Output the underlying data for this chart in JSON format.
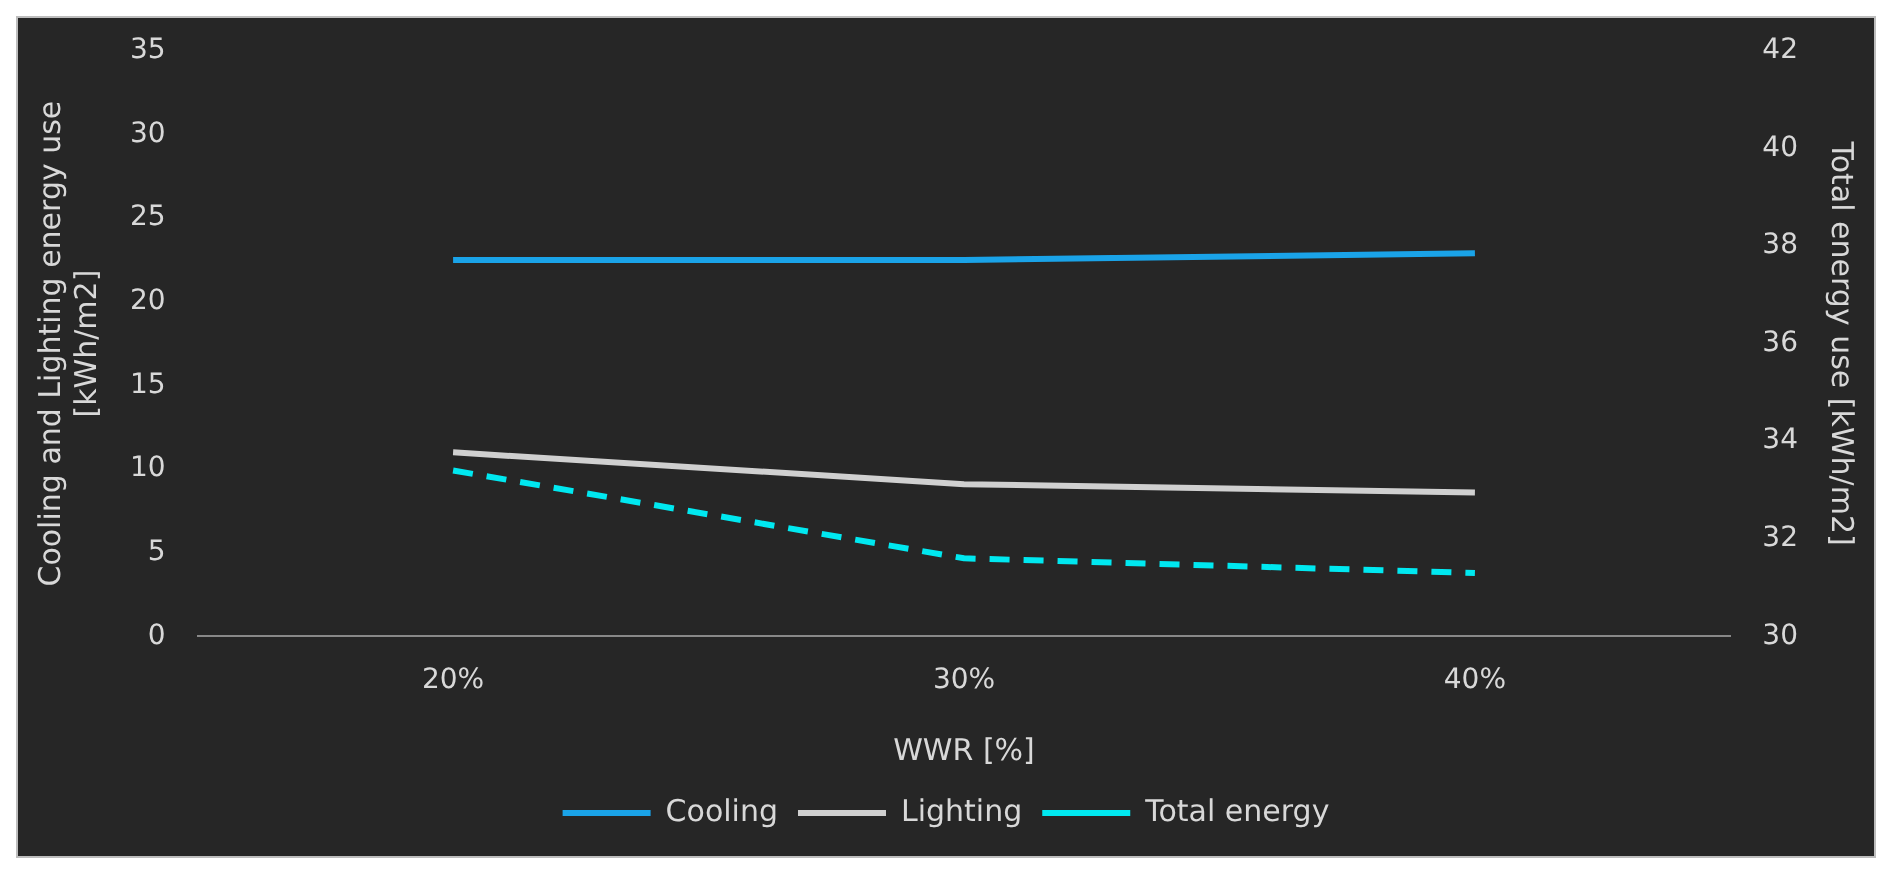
{
  "chart_data": {
    "type": "line",
    "xlabel": "WWR [%]",
    "ylabel": "Cooling and Lighting energy use [kWh/m2]",
    "y2label": "Total energy use [kWh/m2]",
    "categories": [
      "20%",
      "30%",
      "40%"
    ],
    "series": [
      {
        "name": "Cooling",
        "color": "#1aa3e8",
        "values": [
          22.5,
          22.5,
          22.9
        ],
        "line_style": "solid"
      },
      {
        "name": "Lighting",
        "color": "#d0d0d0",
        "values": [
          11.0,
          9.1,
          8.6
        ],
        "line_style": "solid"
      },
      {
        "name": "Total energy",
        "color": "#00e8f0",
        "values": [
          33.4,
          31.6,
          31.3
        ],
        "axis": "y2",
        "line_style": "dashed"
      }
    ],
    "ylim": [
      0,
      35
    ],
    "yticks": [
      0,
      5,
      10,
      15,
      20,
      25,
      30,
      35
    ],
    "y2lim": [
      30,
      42
    ],
    "y2ticks": [
      30,
      32,
      34,
      36,
      38,
      40,
      42
    ],
    "grid": false,
    "legend": "bottom",
    "marker": "none"
  }
}
